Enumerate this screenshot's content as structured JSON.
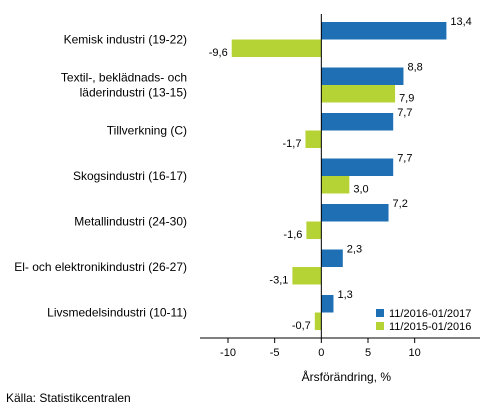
{
  "chart_data": {
    "type": "bar",
    "orientation": "horizontal",
    "categories": [
      [
        "Kemisk industri (19-22)"
      ],
      [
        "Textil-, beklädnads- och",
        "läderindustri (13-15)"
      ],
      [
        "Tillverkning (C)"
      ],
      [
        "Skogsindustri (16-17)"
      ],
      [
        "Metallindustri (24-30)"
      ],
      [
        "El- och elektronikindustri (26-27)"
      ],
      [
        "Livsmedelsindustri (10-11)"
      ]
    ],
    "series": [
      {
        "name": "11/2016-01/2017",
        "color": "#1f6fb5",
        "values": [
          13.4,
          8.8,
          7.7,
          7.7,
          7.2,
          2.3,
          1.3
        ],
        "labels": [
          "13,4",
          "8,8",
          "7,7",
          "7,7",
          "7,2",
          "2,3",
          "1,3"
        ]
      },
      {
        "name": "11/2015-01/2016",
        "color": "#b5d334",
        "values": [
          -9.6,
          7.9,
          -1.7,
          3.0,
          -1.6,
          -3.1,
          -0.7
        ],
        "labels": [
          "-9,6",
          "7,9",
          "-1,7",
          "3,0",
          "-1,6",
          "-3,1",
          "-0,7"
        ]
      }
    ],
    "xlabel": "Årsförändring, %",
    "xlim": [
      -13,
      17
    ],
    "xticks": [
      -10,
      -5,
      0,
      5,
      10
    ],
    "xtick_labels": [
      "-10",
      "-5",
      "0",
      "5",
      "10"
    ],
    "grid": false,
    "legend_position": "bottom-right"
  },
  "source": "Källa: Statistikcentralen"
}
